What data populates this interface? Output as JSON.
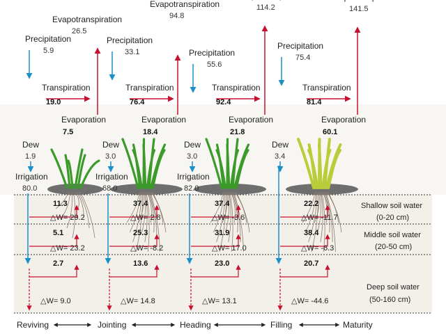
{
  "labels": {
    "evapotranspiration": "Evapotranspiration",
    "precipitation": "Precipitation",
    "transpiration": "Transpiration",
    "evaporation": "Evaporation",
    "dew": "Dew",
    "irrigation": "Irrigation"
  },
  "layers": {
    "shallow": "Shallow soil water",
    "shallow_range": "(0-20 cm)",
    "middle": "Middle soil water",
    "middle_range": "(20-50 cm)",
    "deep": "Deep soil water",
    "deep_range": "(50-160 cm)"
  },
  "stages": [
    "Reviving",
    "Jointing",
    "Heading",
    "Filling",
    "Maturity"
  ],
  "periods": [
    {
      "et": "26.5",
      "precip": "5.9",
      "transp": "19.0",
      "evap": "7.5",
      "dew": "1.9",
      "irrig": "80.0",
      "f1": "11.3",
      "dw1": "△W= 29.2",
      "f2": "5.1",
      "dw2": "△W= 23.2",
      "f3": "2.7",
      "dw3": "△W= 9.0"
    },
    {
      "et": "94.8",
      "precip": "33.1",
      "transp": "76.4",
      "evap": "18.4",
      "dew": "3.0",
      "irrig": "68.0",
      "f1": "37.4",
      "dw1": "△W= 2.8",
      "f2": "25.3",
      "dw2": "△W= -8.2",
      "f3": "13.6",
      "dw3": "△W= 14.8"
    },
    {
      "et": "114.2",
      "precip": "55.6",
      "transp": "92.4",
      "evap": "21.8",
      "dew": "3.0",
      "irrig": "82.0",
      "f1": "37.4",
      "dw1": "△W= -3.6",
      "f2": "31.9",
      "dw2": "△W= 17.0",
      "f3": "23.0",
      "dw3": "△W= 13.1"
    },
    {
      "et": "141.5",
      "precip": "75.4",
      "transp": "81.4",
      "evap": "60.1",
      "dew": "3.4",
      "irrig": "",
      "f1": "22.2",
      "dw1": "△W= -11.7",
      "f2": "38.4",
      "dw2": "△W= -6.3",
      "f3": "20.7",
      "dw3": "△W= -44.6"
    }
  ],
  "colors": {
    "red": "#c8102e",
    "blue": "#1a8fc9",
    "soil": "#f3f0ea",
    "ground": "#6e6e6e",
    "leaf": "#3b9a2a",
    "leaf_late": "#b9cc3a",
    "root": "#8a7a70"
  }
}
